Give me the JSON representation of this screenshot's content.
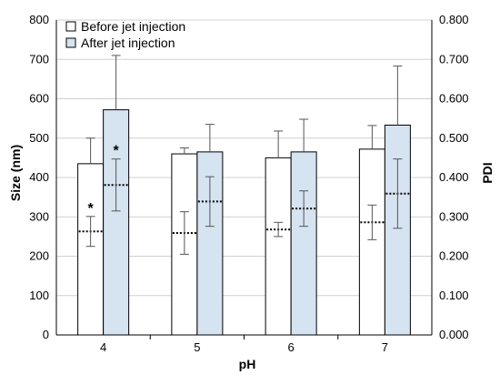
{
  "chart_data": {
    "type": "bar",
    "xlabel": "pH",
    "ylabel": "Size (nm)",
    "y2label": "PDI",
    "categories": [
      "4",
      "5",
      "6",
      "7"
    ],
    "ylim": [
      0,
      800
    ],
    "y_ticks": [
      "0",
      "100",
      "200",
      "300",
      "400",
      "500",
      "600",
      "700",
      "800"
    ],
    "y2lim": [
      0,
      0.8
    ],
    "y2_ticks": [
      "0.000",
      "0.100",
      "0.200",
      "0.300",
      "0.400",
      "0.500",
      "0.600",
      "0.700",
      "0.800"
    ],
    "grid": true,
    "legend_position": "top-left",
    "series": [
      {
        "name": "Before jet injection",
        "color": "#ffffff",
        "values": [
          435,
          460,
          450,
          472
        ],
        "errors": [
          65,
          15,
          68,
          60
        ],
        "pdi": [
          0.263,
          0.259,
          0.268,
          0.286
        ],
        "pdi_errors": [
          0.038,
          0.054,
          0.018,
          0.044
        ],
        "size_annotations": [
          "",
          "",
          "",
          ""
        ],
        "pdi_annotations": [
          "*",
          "",
          "",
          ""
        ]
      },
      {
        "name": "After jet injection",
        "color": "#d6e3f0",
        "values": [
          572,
          465,
          465,
          533
        ],
        "errors": [
          138,
          70,
          83,
          150
        ],
        "pdi": [
          0.381,
          0.339,
          0.321,
          0.359
        ],
        "pdi_errors": [
          0.066,
          0.063,
          0.045,
          0.088
        ],
        "size_annotations": [
          "",
          "",
          "",
          ""
        ],
        "pdi_annotations": [
          "*",
          "",
          "",
          ""
        ]
      }
    ]
  }
}
